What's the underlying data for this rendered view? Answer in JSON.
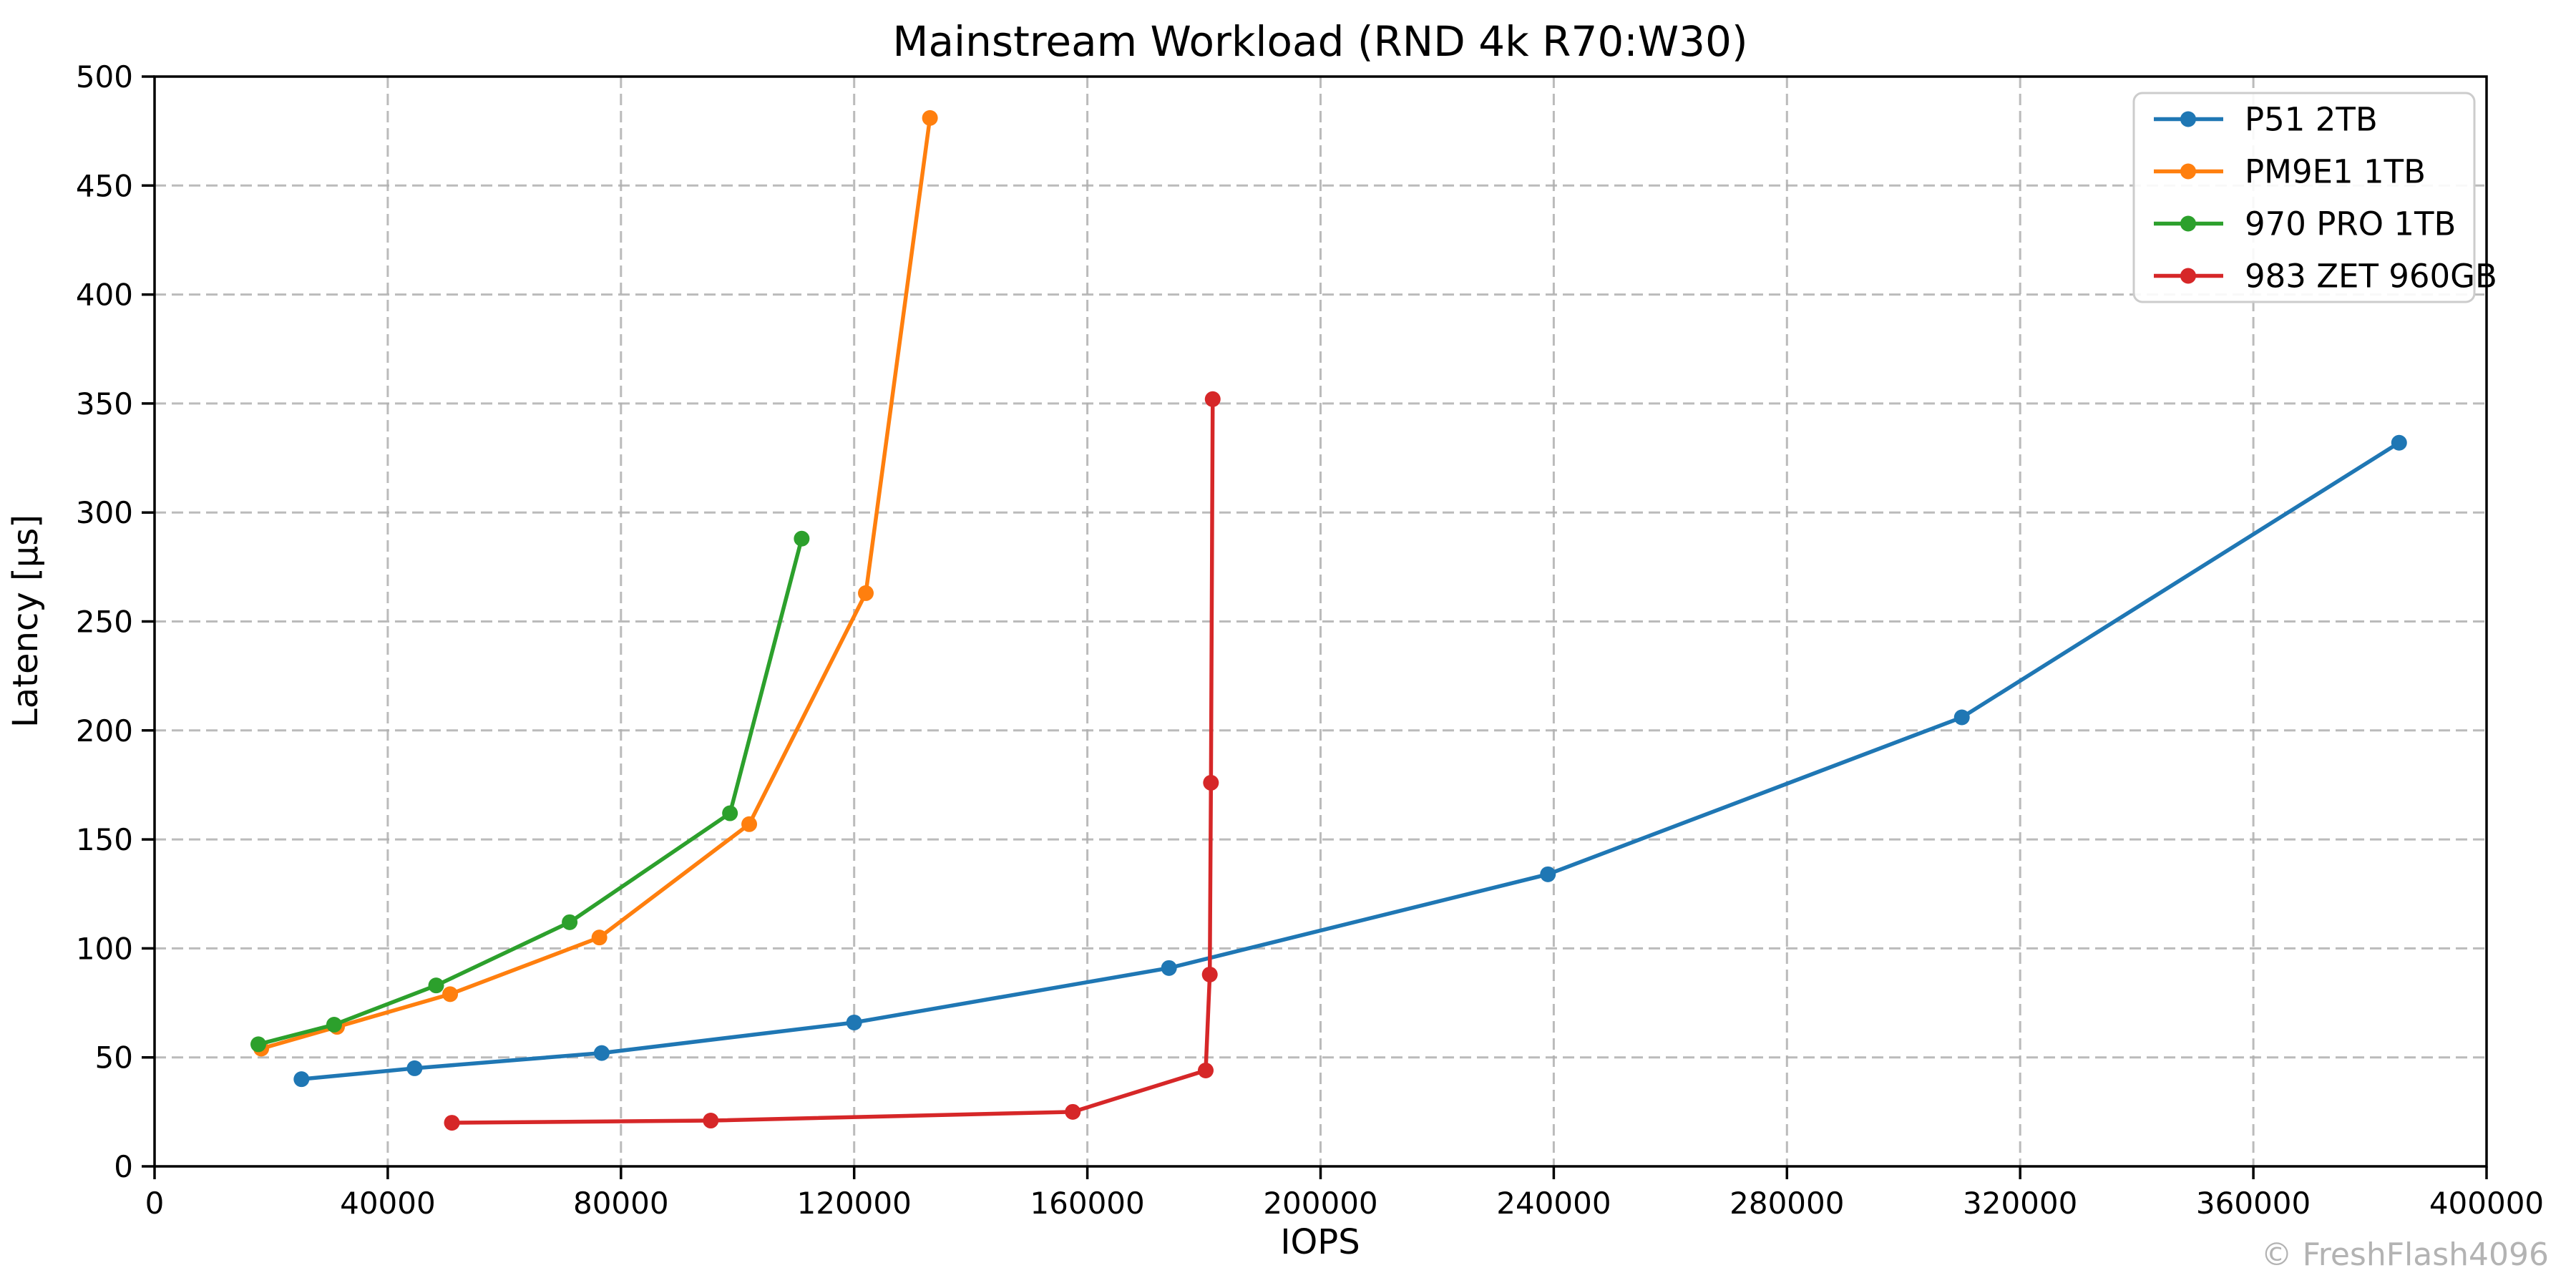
{
  "chart_data": {
    "type": "line",
    "title": "Mainstream Workload (RND 4k R70:W30)",
    "xlabel": "IOPS",
    "ylabel": "Latency [µs]",
    "xlim": [
      0,
      400000
    ],
    "ylim": [
      0,
      500
    ],
    "xticks": [
      0,
      40000,
      80000,
      120000,
      160000,
      200000,
      240000,
      280000,
      320000,
      360000,
      400000
    ],
    "yticks": [
      0,
      50,
      100,
      150,
      200,
      250,
      300,
      350,
      400,
      450,
      500
    ],
    "grid": true,
    "grid_style": "dashed",
    "grid_color": "#b0b0b0",
    "legend_position": "upper right",
    "watermark": "© FreshFlash4096",
    "series": [
      {
        "name": "P51 2TB",
        "color": "#1f77b4",
        "points": [
          [
            25200,
            40
          ],
          [
            44600,
            45
          ],
          [
            76700,
            52
          ],
          [
            120000,
            66
          ],
          [
            174000,
            91
          ],
          [
            239000,
            134
          ],
          [
            310000,
            206
          ],
          [
            385000,
            332
          ]
        ]
      },
      {
        "name": "PM9E1 1TB",
        "color": "#ff7f0e",
        "points": [
          [
            18300,
            54
          ],
          [
            31300,
            64
          ],
          [
            50700,
            79
          ],
          [
            76300,
            105
          ],
          [
            102000,
            157
          ],
          [
            122000,
            263
          ],
          [
            133000,
            481
          ]
        ]
      },
      {
        "name": "970 PRO 1TB",
        "color": "#2ca02c",
        "points": [
          [
            17800,
            56
          ],
          [
            30800,
            65
          ],
          [
            48300,
            83
          ],
          [
            71200,
            112
          ],
          [
            98700,
            162
          ],
          [
            111000,
            288
          ]
        ]
      },
      {
        "name": "983 ZET 960GB",
        "color": "#d62728",
        "points": [
          [
            51000,
            20
          ],
          [
            95400,
            21
          ],
          [
            157500,
            25
          ],
          [
            180300,
            44
          ],
          [
            181000,
            88
          ],
          [
            181200,
            176
          ],
          [
            181500,
            352
          ]
        ]
      }
    ]
  }
}
